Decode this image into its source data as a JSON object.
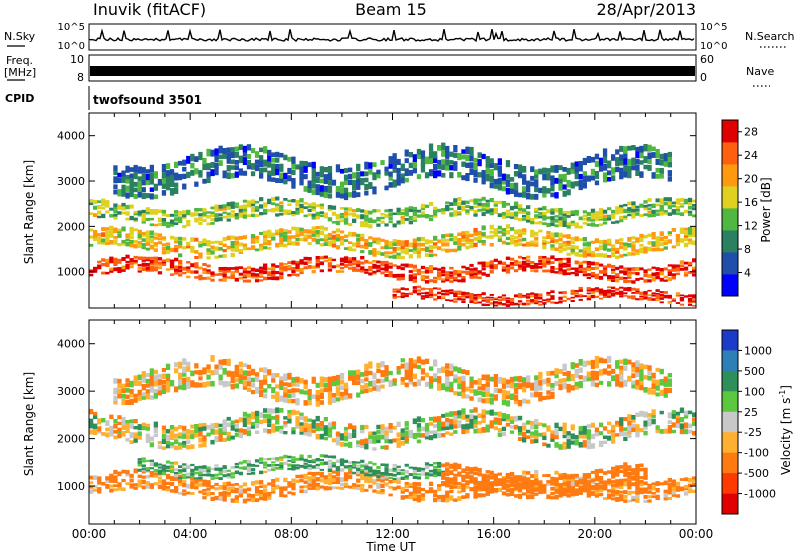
{
  "header": {
    "station": "Inuvik (fitACF)",
    "beam": "Beam 15",
    "date": "28/Apr/2013"
  },
  "top_panels": {
    "nsky_label": "N.Sky",
    "nsearch_label": "N.Search",
    "nsky_ticks": [
      "10^5",
      "10^0"
    ],
    "nsearch_ticks": [
      "10^5",
      "10^0"
    ],
    "freq_label_1": "Freq.",
    "freq_label_2": "[MHz]",
    "freq_ticks": [
      "10",
      "8"
    ],
    "nave_label": "Nave",
    "nave_ticks": [
      "60",
      "0"
    ],
    "cpid_label": "CPID",
    "cpid_value": "twofsound 3501"
  },
  "chart_data": [
    {
      "type": "heatmap",
      "parameter": "power",
      "ylabel": "Slant Range [km]",
      "ylim": [
        200,
        4500
      ],
      "y_ticks": [
        1000,
        2000,
        3000,
        4000
      ],
      "x_ticks": [
        "00:00",
        "04:00",
        "08:00",
        "12:00",
        "16:00",
        "20:00",
        "00:00"
      ],
      "colorbar": {
        "label": "Power [dB]",
        "ticks": [
          4,
          8,
          12,
          16,
          20,
          24,
          28
        ],
        "range": [
          0,
          30
        ],
        "colors": [
          "#0000ff",
          "#1f4faa",
          "#2a8060",
          "#50b840",
          "#e0d020",
          "#ff9a10",
          "#ff6010",
          "#e00000"
        ]
      },
      "bands": [
        {
          "from": 0,
          "to": 24,
          "center": 1050,
          "width": 350,
          "value": 26
        },
        {
          "from": 0,
          "to": 24,
          "center": 1650,
          "width": 420,
          "value": 18
        },
        {
          "from": 0,
          "to": 24,
          "center": 2300,
          "width": 380,
          "value": 14
        },
        {
          "from": 1,
          "to": 23,
          "center": 3200,
          "width": 700,
          "value": 8
        },
        {
          "from": 12,
          "to": 24,
          "center": 450,
          "width": 250,
          "value": 27
        }
      ]
    },
    {
      "type": "heatmap",
      "parameter": "velocity",
      "ylabel": "Slant Range [km]",
      "ylim": [
        200,
        4500
      ],
      "y_ticks": [
        1000,
        2000,
        3000,
        4000
      ],
      "x_ticks": [
        "00:00",
        "04:00",
        "08:00",
        "12:00",
        "16:00",
        "20:00",
        "00:00"
      ],
      "xlabel": "Time UT",
      "colorbar": {
        "label": "Velocity [m s",
        "label_sup": "-1",
        "label_end": "]",
        "ticks": [
          "1000",
          "500",
          "100",
          "25",
          "-25",
          "-100",
          "-500",
          "-1000"
        ],
        "colors": [
          "#1a3cc8",
          "#2e7fb8",
          "#2f8f5a",
          "#5cc840",
          "#c8c8c8",
          "#ffb030",
          "#ff7a10",
          "#ff3a00",
          "#e00000"
        ]
      },
      "bands": [
        {
          "from": 0,
          "to": 24,
          "center": 1000,
          "width": 400,
          "value": -150
        },
        {
          "from": 2,
          "to": 14,
          "center": 1400,
          "width": 300,
          "value": 120
        },
        {
          "from": 0,
          "to": 24,
          "center": 2200,
          "width": 500,
          "value": 0
        },
        {
          "from": 14,
          "to": 22,
          "center": 1100,
          "width": 450,
          "value": -300
        },
        {
          "from": 1,
          "to": 23,
          "center": 3200,
          "width": 600,
          "value": -60
        }
      ]
    }
  ]
}
